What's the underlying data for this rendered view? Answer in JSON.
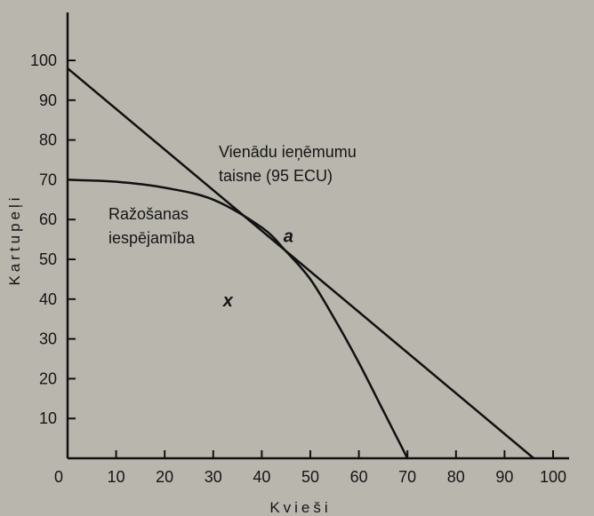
{
  "chart_data": {
    "type": "line",
    "xlabel": "Kvieši",
    "ylabel": "Kartupeļi",
    "xlim": [
      0,
      100
    ],
    "ylim": [
      0,
      100
    ],
    "x_ticks": [
      0,
      10,
      20,
      30,
      40,
      50,
      60,
      70,
      80,
      90,
      100
    ],
    "y_ticks": [
      10,
      20,
      30,
      40,
      50,
      60,
      70,
      80,
      90,
      100
    ],
    "grid": false,
    "series": [
      {
        "name": "Vienādu ieņēmumu taisne (95 ECU)",
        "points": [
          [
            0,
            98
          ],
          [
            96,
            0
          ]
        ]
      },
      {
        "name": "Ražošanas iespējamība",
        "points": [
          [
            0,
            70
          ],
          [
            10,
            69.5
          ],
          [
            20,
            68
          ],
          [
            30,
            65
          ],
          [
            40,
            58
          ],
          [
            45,
            52
          ],
          [
            50,
            45
          ],
          [
            55,
            35
          ],
          [
            60,
            24
          ],
          [
            65,
            12
          ],
          [
            70,
            0
          ]
        ]
      }
    ],
    "annotations": {
      "line_label_1": "Vienādu ieņēmumu",
      "line_label_2": "taisne (95 ECU)",
      "curve_label_1": "Ražošanas",
      "curve_label_2": "iespējamība",
      "point_a": "a",
      "point_x": "x"
    },
    "point_a_coords": [
      43,
      55
    ],
    "point_x_coords": [
      32,
      40
    ]
  }
}
